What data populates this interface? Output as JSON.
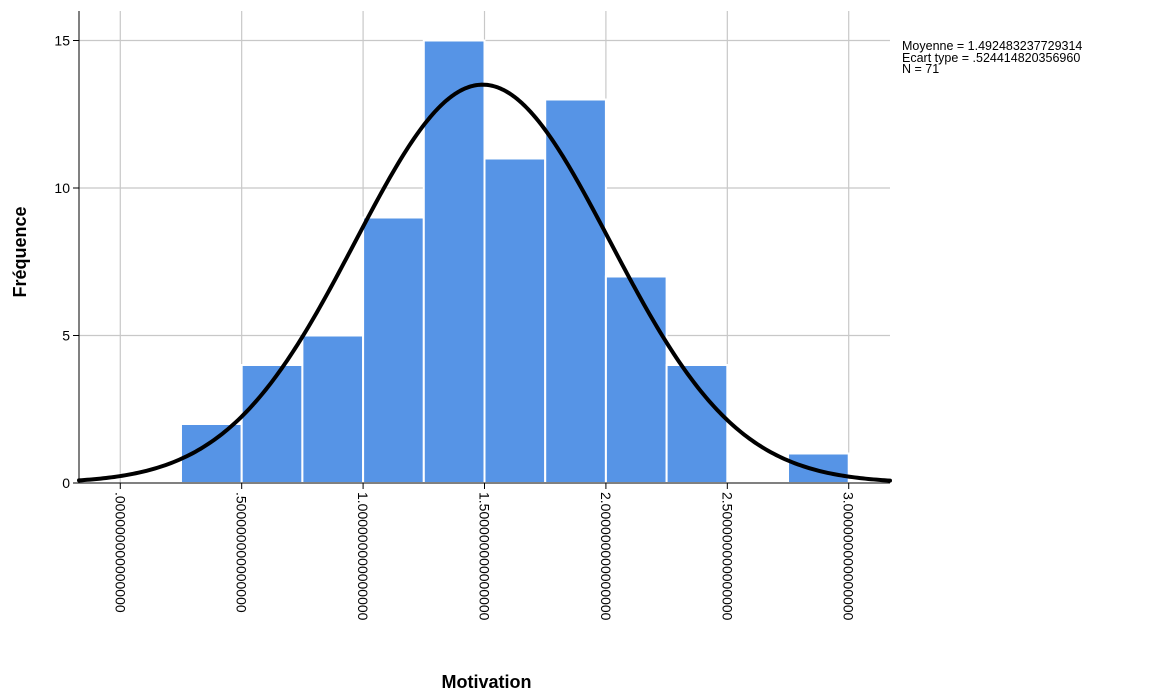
{
  "chart_data": {
    "type": "bar",
    "subtype": "histogram",
    "xlabel": "Motivation",
    "ylabel": "Fréquence",
    "x_tick_values": [
      0,
      0.5,
      1,
      1.5,
      2,
      2.5,
      3
    ],
    "x_tick_labels": [
      ".000000000000000",
      ".500000000000000",
      "1.000000000000000",
      "1.500000000000000",
      "2.000000000000000",
      "2.500000000000000",
      "3.000000000000000"
    ],
    "y_ticks": [
      0,
      5,
      10,
      15
    ],
    "xlim": [
      -0.17,
      3.17
    ],
    "ylim": [
      0,
      16
    ],
    "bin_width": 0.25,
    "bins": [
      {
        "start": 0.25,
        "end": 0.5,
        "count": 2
      },
      {
        "start": 0.5,
        "end": 0.75,
        "count": 4
      },
      {
        "start": 0.75,
        "end": 1.0,
        "count": 5
      },
      {
        "start": 1.0,
        "end": 1.25,
        "count": 9
      },
      {
        "start": 1.25,
        "end": 1.5,
        "count": 15
      },
      {
        "start": 1.5,
        "end": 1.75,
        "count": 11
      },
      {
        "start": 1.75,
        "end": 2.0,
        "count": 13
      },
      {
        "start": 2.0,
        "end": 2.25,
        "count": 7
      },
      {
        "start": 2.25,
        "end": 2.5,
        "count": 4
      },
      {
        "start": 2.5,
        "end": 2.75,
        "count": 0
      },
      {
        "start": 2.75,
        "end": 3.0,
        "count": 1
      }
    ],
    "normal_curve": {
      "mean": 1.492483237729314,
      "sd": 0.52441482035696,
      "n": 71
    },
    "stats_text": {
      "mean_line": "Moyenne = 1.492483237729314",
      "sd_line": "Ecart type = .524414820356960",
      "n_line": "N = 71"
    },
    "grid": true,
    "colors": {
      "bar_fill": "#5694e6",
      "bar_edge": "#ffffff",
      "curve": "#000000",
      "grid": "#c8c8c8"
    }
  }
}
